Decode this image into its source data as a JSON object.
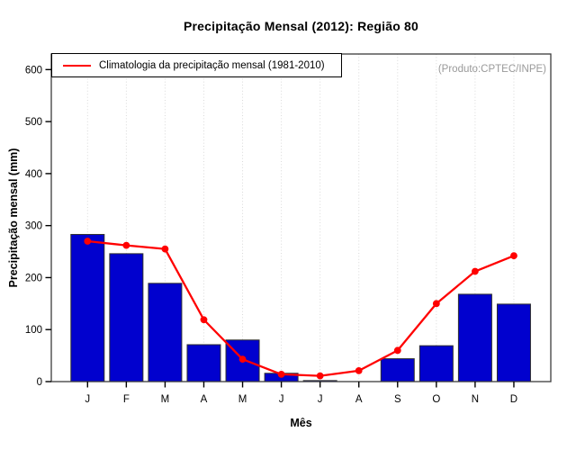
{
  "title": "Precipitação Mensal (2012): Região 80",
  "watermark": "(Produto:CPTEC/INPE)",
  "legend": {
    "label": "Climatologia da precipitação mensal (1981-2010)"
  },
  "axes": {
    "xlabel": "Mês",
    "ylabel": "Precipitação mensal (mm)"
  },
  "colors": {
    "bar_fill": "#0101CE",
    "bar_border": "#303030",
    "line": "#FF0000",
    "grid": "#D9D9D9",
    "box": "#3C3C3C",
    "axis": "#000000",
    "watermark": "#999999"
  },
  "chart_data": {
    "type": "bar",
    "title": "Precipitação Mensal (2012): Região 80",
    "categories": [
      "J",
      "F",
      "M",
      "A",
      "M",
      "J",
      "J",
      "A",
      "S",
      "O",
      "N",
      "D"
    ],
    "series": [
      {
        "name": "Precipitação mensal 2012",
        "type": "bar",
        "values": [
          283,
          246,
          189,
          71,
          80,
          16,
          2,
          0,
          44,
          69,
          168,
          149
        ]
      },
      {
        "name": "Climatologia da precipitação mensal (1981-2010)",
        "type": "line",
        "values": [
          270,
          262,
          255,
          119,
          43,
          14,
          11,
          21,
          60,
          150,
          212,
          242
        ]
      }
    ],
    "xlabel": "Mês",
    "ylabel": "Precipitação mensal (mm)",
    "yticks": [
      0,
      100,
      200,
      300,
      400,
      500,
      600
    ],
    "ylim": [
      0,
      630
    ],
    "grid": "vertical-dotted",
    "legend_position": "top-left",
    "annotation": "(Produto:CPTEC/INPE)"
  }
}
